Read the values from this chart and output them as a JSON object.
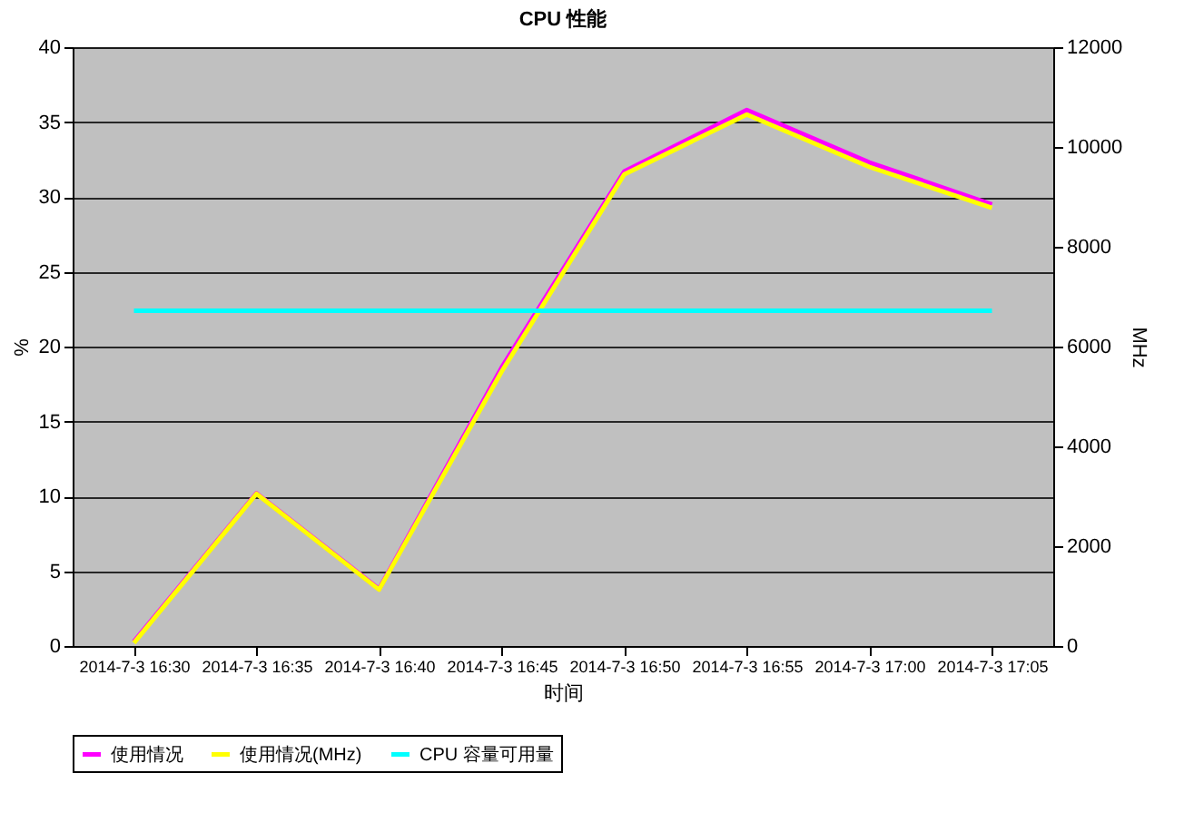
{
  "chart_data": {
    "type": "line",
    "title": "CPU 性能",
    "xlabel": "时间",
    "ylabel": "%",
    "y2label": "MHz",
    "categories": [
      "2014-7-3 16:30",
      "2014-7-3 16:35",
      "2014-7-3 16:40",
      "2014-7-3 16:45",
      "2014-7-3 16:50",
      "2014-7-3 16:55",
      "2014-7-3 17:00",
      "2014-7-3 17:05"
    ],
    "series": [
      {
        "name": "使用情况",
        "color": "#ff00ff",
        "values": [
          0.3,
          10.2,
          3.8,
          18.6,
          31.7,
          35.8,
          32.3,
          29.5
        ]
      },
      {
        "name": "使用情况(MHz)",
        "color": "#ffff00",
        "axis": "y2",
        "values": [
          60,
          3050,
          1130,
          5500,
          9450,
          10650,
          9600,
          8780
        ]
      },
      {
        "name": "CPU 容量可用量",
        "color": "#00ffff",
        "axis": "y2",
        "values": [
          6720,
          6720,
          6720,
          6720,
          6720,
          6720,
          6720,
          6720
        ]
      }
    ],
    "ylim": [
      0,
      40
    ],
    "yticks": [
      0,
      5,
      10,
      15,
      20,
      25,
      30,
      35,
      40
    ],
    "y2lim": [
      0,
      12000
    ],
    "y2ticks": [
      0,
      2000,
      4000,
      6000,
      8000,
      10000,
      12000
    ],
    "grid": "y",
    "legend": "bottom",
    "marker": "none",
    "line_style": "solid"
  }
}
